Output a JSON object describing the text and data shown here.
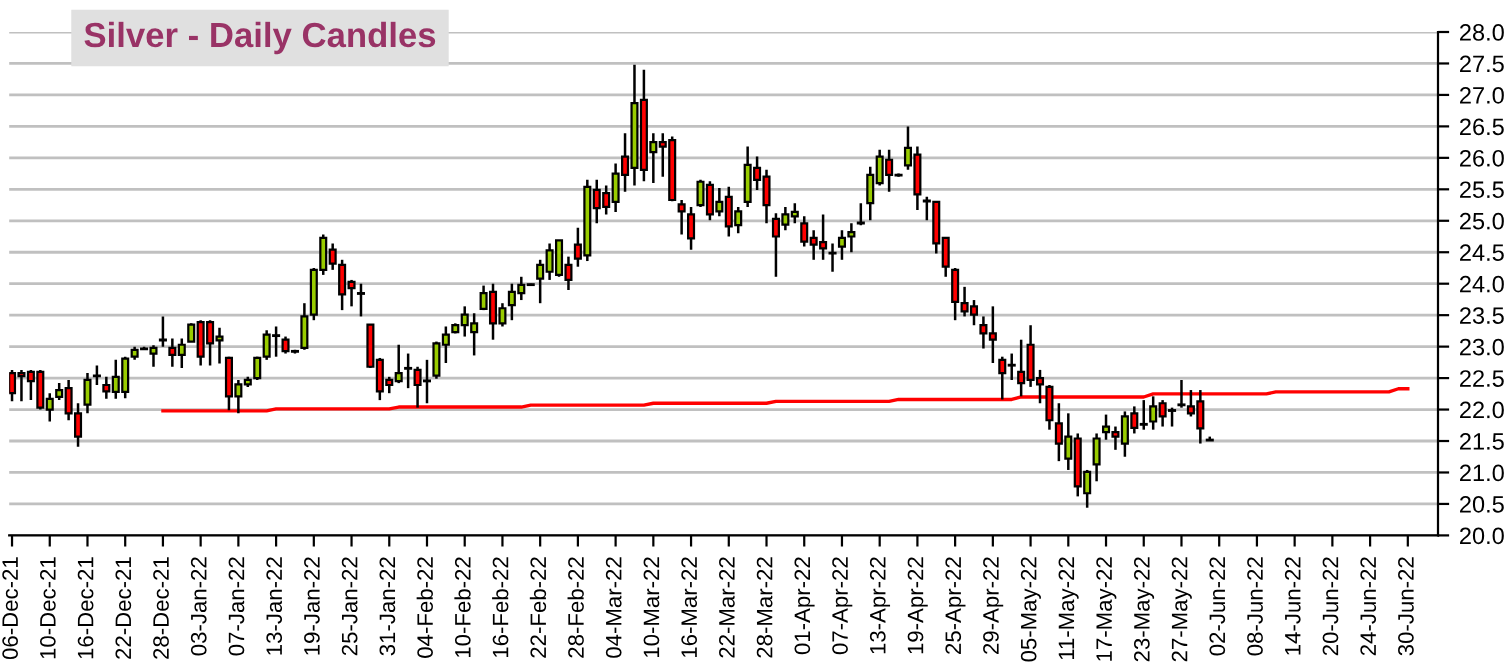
{
  "chart_data": {
    "type": "candlestick",
    "title": "Silver - Daily Candles",
    "categories": [
      "06-Dec-21",
      null,
      null,
      null,
      "10-Dec-21",
      null,
      null,
      null,
      "16-Dec-21",
      null,
      null,
      null,
      "22-Dec-21",
      null,
      null,
      null,
      "28-Dec-21",
      null,
      null,
      null,
      "03-Jan-22",
      null,
      null,
      null,
      "07-Jan-22",
      null,
      null,
      null,
      "13-Jan-22",
      null,
      null,
      null,
      "19-Jan-22",
      null,
      null,
      null,
      "25-Jan-22",
      null,
      null,
      null,
      "31-Jan-22",
      null,
      null,
      null,
      "04-Feb-22",
      null,
      null,
      null,
      "10-Feb-22",
      null,
      null,
      null,
      "16-Feb-22",
      null,
      null,
      null,
      "22-Feb-22",
      null,
      null,
      null,
      "28-Feb-22",
      null,
      null,
      null,
      "04-Mar-22",
      null,
      null,
      null,
      "10-Mar-22",
      null,
      null,
      null,
      "16-Mar-22",
      null,
      null,
      null,
      "22-Mar-22",
      null,
      null,
      null,
      "28-Mar-22",
      null,
      null,
      null,
      "01-Apr-22",
      null,
      null,
      null,
      "07-Apr-22",
      null,
      null,
      null,
      "13-Apr-22",
      null,
      null,
      null,
      "19-Apr-22",
      null,
      null,
      null,
      "25-Apr-22",
      null,
      null,
      null,
      "29-Apr-22",
      null,
      null,
      null,
      "05-May-22",
      null,
      null,
      null,
      "11-May-22",
      null,
      null,
      null,
      "17-May-22",
      null,
      null,
      null,
      "23-May-22",
      null,
      null,
      null,
      "27-May-22",
      null,
      null,
      null,
      "02-Jun-22",
      null,
      null,
      null,
      "08-Jun-22",
      null,
      null,
      null,
      "14-Jun-22",
      null,
      null,
      null,
      "20-Jun-22",
      null,
      null,
      null,
      "24-Jun-22",
      null,
      null,
      null,
      "30-Jun-22"
    ],
    "ohlc": [
      [
        22.58,
        22.63,
        22.13,
        22.26
      ],
      [
        22.58,
        22.63,
        22.13,
        22.53
      ],
      [
        22.6,
        22.63,
        22.15,
        22.45
      ],
      [
        22.6,
        22.63,
        22.0,
        22.03
      ],
      [
        22.0,
        22.26,
        21.81,
        22.17
      ],
      [
        22.2,
        22.42,
        22.15,
        22.31
      ],
      [
        22.34,
        22.47,
        21.83,
        21.94
      ],
      [
        21.94,
        22.1,
        21.41,
        21.57
      ],
      [
        22.08,
        22.58,
        21.94,
        22.47
      ],
      [
        22.53,
        22.7,
        22.39,
        22.54
      ],
      [
        22.39,
        22.52,
        22.17,
        22.29
      ],
      [
        22.28,
        22.79,
        22.17,
        22.52
      ],
      [
        22.28,
        22.84,
        22.18,
        22.81
      ],
      [
        22.84,
        23.0,
        22.79,
        22.95
      ],
      [
        22.96,
        23.0,
        22.95,
        22.97
      ],
      [
        22.89,
        23.02,
        22.68,
        22.98
      ],
      [
        23.1,
        23.48,
        23.0,
        23.11
      ],
      [
        22.98,
        23.13,
        22.68,
        22.87
      ],
      [
        22.87,
        23.13,
        22.66,
        23.03
      ],
      [
        23.08,
        23.37,
        23.08,
        23.35
      ],
      [
        23.39,
        23.42,
        22.7,
        22.84
      ],
      [
        23.39,
        23.42,
        22.7,
        23.05
      ],
      [
        23.1,
        23.3,
        22.73,
        23.16
      ],
      [
        22.82,
        22.84,
        21.99,
        22.21
      ],
      [
        22.21,
        22.47,
        21.94,
        22.4
      ],
      [
        22.4,
        22.52,
        22.36,
        22.47
      ],
      [
        22.5,
        22.84,
        22.47,
        22.82
      ],
      [
        22.84,
        23.26,
        22.79,
        23.19
      ],
      [
        23.17,
        23.32,
        22.84,
        23.18
      ],
      [
        23.11,
        23.16,
        22.89,
        22.93
      ],
      [
        22.93,
        22.95,
        22.89,
        22.92
      ],
      [
        22.98,
        23.69,
        22.95,
        23.48
      ],
      [
        23.51,
        24.25,
        23.42,
        24.22
      ],
      [
        24.22,
        24.78,
        24.14,
        24.73
      ],
      [
        24.54,
        24.64,
        24.22,
        24.32
      ],
      [
        24.3,
        24.38,
        23.58,
        23.83
      ],
      [
        24.03,
        24.06,
        23.64,
        23.93
      ],
      [
        23.85,
        24.0,
        23.48,
        23.84
      ],
      [
        23.35,
        23.35,
        22.66,
        22.68
      ],
      [
        22.79,
        22.82,
        22.15,
        22.29
      ],
      [
        22.47,
        22.52,
        22.26,
        22.39
      ],
      [
        22.45,
        23.03,
        22.42,
        22.58
      ],
      [
        22.65,
        22.89,
        22.34,
        22.66
      ],
      [
        22.63,
        22.68,
        22.03,
        22.39
      ],
      [
        22.46,
        22.79,
        22.1,
        22.45
      ],
      [
        22.54,
        23.08,
        22.49,
        23.05
      ],
      [
        23.03,
        23.32,
        22.74,
        23.19
      ],
      [
        23.23,
        23.37,
        23.21,
        23.34
      ],
      [
        23.34,
        23.64,
        23.16,
        23.51
      ],
      [
        23.23,
        23.53,
        22.86,
        23.37
      ],
      [
        23.6,
        23.97,
        23.58,
        23.85
      ],
      [
        23.87,
        24.0,
        23.11,
        23.37
      ],
      [
        23.37,
        23.69,
        23.32,
        23.61
      ],
      [
        23.66,
        24.0,
        23.42,
        23.87
      ],
      [
        23.85,
        24.11,
        23.74,
        23.98
      ],
      [
        23.99,
        24.0,
        23.97,
        23.98
      ],
      [
        24.08,
        24.38,
        23.69,
        24.3
      ],
      [
        24.19,
        24.64,
        24.06,
        24.53
      ],
      [
        24.14,
        24.69,
        24.11,
        24.69
      ],
      [
        24.3,
        24.43,
        23.9,
        24.06
      ],
      [
        24.62,
        24.89,
        24.27,
        24.4
      ],
      [
        24.45,
        25.65,
        24.36,
        25.54
      ],
      [
        25.49,
        25.65,
        24.96,
        25.2
      ],
      [
        25.44,
        25.56,
        25.1,
        25.22
      ],
      [
        25.3,
        25.91,
        25.14,
        25.75
      ],
      [
        26.02,
        26.39,
        25.46,
        25.73
      ],
      [
        25.84,
        27.48,
        25.56,
        26.87
      ],
      [
        26.92,
        27.4,
        25.63,
        25.81
      ],
      [
        26.09,
        26.39,
        25.6,
        26.25
      ],
      [
        26.25,
        26.39,
        25.7,
        26.18
      ],
      [
        26.28,
        26.34,
        25.31,
        25.33
      ],
      [
        25.26,
        25.33,
        24.78,
        25.15
      ],
      [
        25.1,
        25.22,
        24.54,
        24.72
      ],
      [
        25.25,
        25.65,
        25.22,
        25.62
      ],
      [
        25.57,
        25.63,
        25.01,
        25.1
      ],
      [
        25.15,
        25.52,
        25.07,
        25.3
      ],
      [
        25.38,
        25.54,
        24.75,
        24.91
      ],
      [
        24.93,
        25.22,
        24.8,
        25.15
      ],
      [
        25.3,
        26.18,
        25.22,
        25.89
      ],
      [
        25.84,
        26.02,
        25.49,
        25.65
      ],
      [
        25.7,
        25.81,
        24.96,
        25.25
      ],
      [
        25.03,
        25.12,
        24.11,
        24.75
      ],
      [
        24.94,
        25.22,
        24.85,
        25.1
      ],
      [
        25.07,
        25.28,
        24.96,
        25.14
      ],
      [
        24.96,
        25.07,
        24.59,
        24.67
      ],
      [
        24.73,
        24.85,
        24.38,
        24.62
      ],
      [
        24.66,
        25.1,
        24.38,
        24.56
      ],
      [
        24.49,
        24.64,
        24.19,
        24.48
      ],
      [
        24.59,
        24.85,
        24.38,
        24.73
      ],
      [
        24.75,
        24.96,
        24.5,
        24.82
      ],
      [
        24.96,
        25.28,
        24.93,
        24.97
      ],
      [
        25.28,
        25.86,
        25.01,
        25.73
      ],
      [
        25.6,
        26.13,
        25.56,
        26.02
      ],
      [
        25.97,
        26.13,
        25.46,
        25.73
      ],
      [
        25.73,
        25.75,
        25.7,
        25.72
      ],
      [
        25.88,
        26.5,
        25.81,
        26.16
      ],
      [
        26.05,
        26.18,
        25.17,
        25.42
      ],
      [
        25.32,
        25.38,
        25.01,
        25.31
      ],
      [
        25.3,
        25.3,
        24.48,
        24.64
      ],
      [
        24.73,
        24.73,
        24.11,
        24.27
      ],
      [
        24.22,
        24.25,
        23.42,
        23.71
      ],
      [
        23.69,
        23.95,
        23.48,
        23.56
      ],
      [
        23.64,
        23.74,
        23.34,
        23.51
      ],
      [
        23.34,
        23.48,
        22.97,
        23.21
      ],
      [
        23.21,
        23.64,
        22.74,
        23.11
      ],
      [
        22.79,
        22.84,
        22.16,
        22.58
      ],
      [
        22.71,
        22.89,
        22.47,
        22.7
      ],
      [
        22.6,
        23.11,
        22.21,
        22.42
      ],
      [
        23.03,
        23.34,
        22.36,
        22.47
      ],
      [
        22.5,
        22.63,
        22.1,
        22.4
      ],
      [
        22.36,
        22.39,
        21.68,
        21.83
      ],
      [
        21.78,
        22.1,
        21.18,
        21.46
      ],
      [
        21.22,
        21.94,
        21.04,
        21.57
      ],
      [
        21.54,
        21.62,
        20.62,
        20.78
      ],
      [
        20.67,
        21.04,
        20.44,
        21.01
      ],
      [
        21.13,
        21.62,
        20.86,
        21.54
      ],
      [
        21.64,
        21.92,
        21.52,
        21.73
      ],
      [
        21.64,
        21.73,
        21.36,
        21.57
      ],
      [
        21.46,
        21.97,
        21.25,
        21.89
      ],
      [
        21.94,
        22.05,
        21.62,
        21.71
      ],
      [
        21.77,
        22.15,
        21.68,
        21.76
      ],
      [
        21.81,
        22.21,
        21.68,
        22.05
      ],
      [
        22.1,
        22.15,
        21.73,
        21.89
      ],
      [
        21.99,
        22.03,
        21.73,
        21.98
      ],
      [
        22.07,
        22.47,
        22.03,
        22.08
      ],
      [
        22.05,
        22.31,
        21.89,
        21.94
      ],
      [
        22.13,
        22.31,
        21.46,
        21.7
      ],
      [
        21.52,
        21.57,
        21.5,
        21.51
      ],
      null,
      null,
      null,
      null,
      null,
      null,
      null,
      null,
      null,
      null,
      null,
      null,
      null,
      null,
      null,
      null,
      null,
      null,
      null,
      null,
      null
    ],
    "colors": [
      "#ff0000",
      "#ff0000",
      "#ff0000",
      "#ff0000",
      "#99cc00",
      "#99cc00",
      "#ff0000",
      "#ff0000",
      "#99cc00",
      "#000000",
      "#ff0000",
      "#99cc00",
      "#99cc00",
      "#99cc00",
      "#000000",
      "#99cc00",
      "#000000",
      "#ff0000",
      "#99cc00",
      "#99cc00",
      "#ff0000",
      "#ff0000",
      "#99cc00",
      "#ff0000",
      "#99cc00",
      "#99cc00",
      "#99cc00",
      "#99cc00",
      "#000000",
      "#ff0000",
      "#000000",
      "#99cc00",
      "#99cc00",
      "#99cc00",
      "#ff0000",
      "#ff0000",
      "#ff0000",
      "#000000",
      "#ff0000",
      "#ff0000",
      "#ff0000",
      "#99cc00",
      "#000000",
      "#ff0000",
      "#000000",
      "#99cc00",
      "#99cc00",
      "#99cc00",
      "#99cc00",
      "#99cc00",
      "#99cc00",
      "#ff0000",
      "#99cc00",
      "#99cc00",
      "#99cc00",
      "#000000",
      "#99cc00",
      "#99cc00",
      "#99cc00",
      "#ff0000",
      "#ff0000",
      "#99cc00",
      "#ff0000",
      "#ff0000",
      "#99cc00",
      "#ff0000",
      "#99cc00",
      "#ff0000",
      "#99cc00",
      "#ff0000",
      "#ff0000",
      "#ff0000",
      "#ff0000",
      "#99cc00",
      "#ff0000",
      "#99cc00",
      "#ff0000",
      "#99cc00",
      "#99cc00",
      "#ff0000",
      "#ff0000",
      "#ff0000",
      "#99cc00",
      "#99cc00",
      "#ff0000",
      "#ff0000",
      "#ff0000",
      "#000000",
      "#99cc00",
      "#99cc00",
      "#000000",
      "#99cc00",
      "#99cc00",
      "#ff0000",
      "#000000",
      "#99cc00",
      "#ff0000",
      "#000000",
      "#ff0000",
      "#ff0000",
      "#ff0000",
      "#ff0000",
      "#ff0000",
      "#ff0000",
      "#ff0000",
      "#ff0000",
      "#000000",
      "#ff0000",
      "#ff0000",
      "#ff0000",
      "#ff0000",
      "#ff0000",
      "#99cc00",
      "#ff0000",
      "#99cc00",
      "#99cc00",
      "#99cc00",
      "#ff0000",
      "#99cc00",
      "#ff0000",
      "#000000",
      "#99cc00",
      "#ff0000",
      "#000000",
      "#000000",
      "#ff0000",
      "#ff0000",
      "#000000",
      null,
      null,
      null,
      null,
      null,
      null,
      null,
      null,
      null,
      null,
      null,
      null,
      null,
      null,
      null,
      null,
      null,
      null,
      null,
      null,
      null
    ],
    "series": [
      {
        "type": "line",
        "color": "#ff0000",
        "values": [
          null,
          null,
          null,
          null,
          null,
          null,
          null,
          null,
          null,
          null,
          null,
          null,
          null,
          null,
          null,
          null,
          21.98,
          21.98,
          21.98,
          21.98,
          21.98,
          21.98,
          21.98,
          21.98,
          21.98,
          21.98,
          21.98,
          21.98,
          22.01,
          22.01,
          22.01,
          22.01,
          22.01,
          22.01,
          22.01,
          22.01,
          22.01,
          22.01,
          22.01,
          22.01,
          22.01,
          22.04,
          22.04,
          22.04,
          22.04,
          22.04,
          22.04,
          22.04,
          22.04,
          22.04,
          22.04,
          22.04,
          22.04,
          22.04,
          22.04,
          22.07,
          22.07,
          22.07,
          22.07,
          22.07,
          22.07,
          22.07,
          22.07,
          22.07,
          22.07,
          22.07,
          22.07,
          22.07,
          22.1,
          22.1,
          22.1,
          22.1,
          22.1,
          22.1,
          22.1,
          22.1,
          22.1,
          22.1,
          22.1,
          22.1,
          22.1,
          22.13,
          22.13,
          22.13,
          22.13,
          22.13,
          22.13,
          22.13,
          22.13,
          22.13,
          22.13,
          22.13,
          22.13,
          22.13,
          22.16,
          22.16,
          22.16,
          22.16,
          22.16,
          22.16,
          22.16,
          22.16,
          22.16,
          22.16,
          22.16,
          22.16,
          22.16,
          22.2,
          22.2,
          22.2,
          22.2,
          22.2,
          22.2,
          22.2,
          22.2,
          22.2,
          22.2,
          22.2,
          22.2,
          22.2,
          22.2,
          22.25,
          22.25,
          22.25,
          22.25,
          22.25,
          22.25,
          22.25,
          22.25,
          22.25,
          22.25,
          22.25,
          22.25,
          22.25,
          22.28,
          22.28,
          22.28,
          22.28,
          22.28,
          22.28,
          22.28,
          22.28,
          22.28,
          22.28,
          22.28,
          22.28,
          22.28,
          22.33,
          22.33
        ]
      }
    ],
    "ylim": [
      20,
      28
    ],
    "yticks": [
      {
        "value": 20,
        "label": "20.0"
      },
      {
        "value": 20.5,
        "label": "20.5"
      },
      {
        "value": 21,
        "label": "21.0"
      },
      {
        "value": 21.5,
        "label": "21.5"
      },
      {
        "value": 22,
        "label": "22.0"
      },
      {
        "value": 22.5,
        "label": "22.5"
      },
      {
        "value": 23,
        "label": "23.0"
      },
      {
        "value": 23.5,
        "label": "23.5"
      },
      {
        "value": 24,
        "label": "24.0"
      },
      {
        "value": 24.5,
        "label": "24.5"
      },
      {
        "value": 25,
        "label": "25.0"
      },
      {
        "value": 25.5,
        "label": "25.5"
      },
      {
        "value": 26,
        "label": "26.0"
      },
      {
        "value": 26.5,
        "label": "26.5"
      },
      {
        "value": 27,
        "label": "27.0"
      },
      {
        "value": 27.5,
        "label": "27.5"
      },
      {
        "value": 28,
        "label": "28.0"
      }
    ],
    "grid": "y"
  }
}
